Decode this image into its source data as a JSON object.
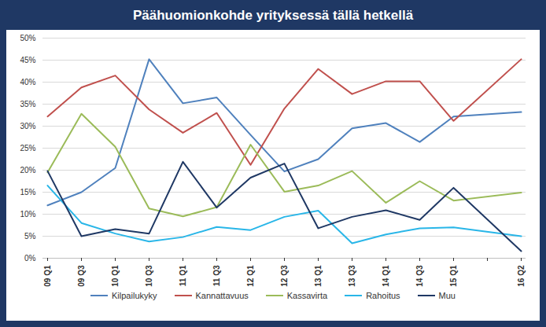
{
  "chart_data": {
    "type": "line",
    "title": "Päähuomionkohde yrityksessä tällä hetkellä",
    "categories": [
      "09 Q1",
      "09 Q3",
      "10 Q1",
      "10 Q3",
      "11 Q1",
      "11 Q3",
      "12 Q1",
      "12 Q3",
      "13 Q1",
      "13 Q3",
      "14 Q1",
      "14 Q3",
      "15 Q1",
      null,
      "16 Q2"
    ],
    "series": [
      {
        "name": "Kilpailukyky",
        "color": "#4f81bd",
        "values": [
          12,
          15,
          20.5,
          45.2,
          35.2,
          36.5,
          28,
          19.7,
          22.5,
          29.5,
          30.7,
          26.4,
          32.2,
          null,
          33.2
        ]
      },
      {
        "name": "Kannattavuus",
        "color": "#c0504d",
        "values": [
          32.2,
          38.8,
          41.5,
          33.8,
          28.5,
          33,
          21.2,
          34,
          43,
          37.3,
          40.2,
          40.2,
          31.2,
          null,
          45.2
        ]
      },
      {
        "name": "Kassavirta",
        "color": "#9bbb59",
        "values": [
          19.5,
          32.8,
          25.3,
          11.3,
          9.5,
          11.6,
          25.8,
          15.1,
          16.5,
          19.8,
          12.6,
          17.5,
          13.1,
          null,
          14.9
        ]
      },
      {
        "name": "Rahoitus",
        "color": "#29b6e8",
        "values": [
          16.5,
          8,
          5.6,
          3.8,
          4.8,
          7.1,
          6.4,
          9.4,
          10.8,
          3.4,
          5.4,
          6.8,
          7,
          null,
          5
        ]
      },
      {
        "name": "Muu",
        "color": "#1f3864",
        "values": [
          19.8,
          5,
          6.6,
          5.6,
          21.9,
          11.5,
          18.3,
          21.5,
          6.8,
          9.4,
          10.9,
          8.7,
          16,
          null,
          1.6
        ]
      }
    ],
    "ylim": [
      0,
      50
    ],
    "yticks": [
      {
        "value": 0,
        "label": "0%"
      },
      {
        "value": 5,
        "label": "5%"
      },
      {
        "value": 10,
        "label": "10%"
      },
      {
        "value": 15,
        "label": "15%"
      },
      {
        "value": 20,
        "label": "20%"
      },
      {
        "value": 25,
        "label": "25%"
      },
      {
        "value": 30,
        "label": "30%"
      },
      {
        "value": 35,
        "label": "35%"
      },
      {
        "value": 40,
        "label": "40%"
      },
      {
        "value": 45,
        "label": "45%"
      },
      {
        "value": 50,
        "label": "50%"
      }
    ],
    "grid": true,
    "legend": "bottom"
  }
}
